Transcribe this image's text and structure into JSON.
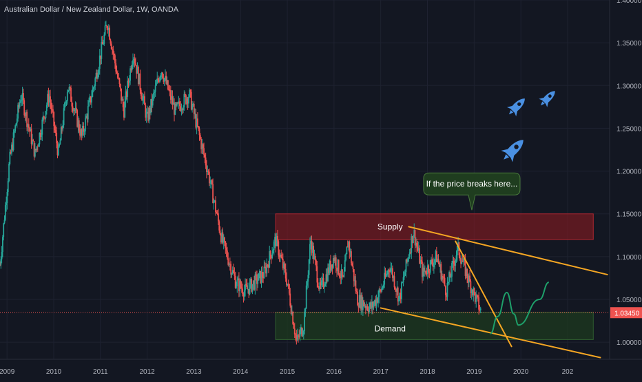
{
  "header": {
    "title": "Australian Dollar / New Zealand Dollar, 1W, OANDA"
  },
  "colors": {
    "background": "#131722",
    "up_candle": "#26a69a",
    "down_candle": "#ef5350",
    "supply_zone": "#8b1a22",
    "demand_zone": "#1e3a1f",
    "trendline": "#f5a623",
    "projection": "#1e9f6a",
    "price_line": "#ef5350",
    "rocket": "#4a90e2",
    "callout_bg": "#1f3d1f",
    "axis_text": "#b2b5be"
  },
  "icons": [
    "rocket-icon",
    "rocket-icon",
    "rocket-icon"
  ],
  "chart_data": {
    "type": "candlestick",
    "symbol": "AUD/NZD",
    "interval": "1W",
    "x_ticks": [
      "2009",
      "2010",
      "2011",
      "2012",
      "2013",
      "2014",
      "2015",
      "2016",
      "2017",
      "2018",
      "2019",
      "2020",
      "202"
    ],
    "y_ticks": [
      "1.00000",
      "1.05000",
      "1.10000",
      "1.15000",
      "1.20000",
      "1.25000",
      "1.30000",
      "1.35000",
      "1.40000"
    ],
    "ylim": [
      0.98,
      1.4
    ],
    "xlim": [
      2008.85,
      2021.9
    ],
    "price_path": [
      [
        2008.85,
        1.09
      ],
      [
        2009.05,
        1.21
      ],
      [
        2009.3,
        1.29
      ],
      [
        2009.6,
        1.22
      ],
      [
        2009.9,
        1.29
      ],
      [
        2010.1,
        1.22
      ],
      [
        2010.3,
        1.3
      ],
      [
        2010.6,
        1.24
      ],
      [
        2010.9,
        1.31
      ],
      [
        2011.15,
        1.375
      ],
      [
        2011.5,
        1.27
      ],
      [
        2011.7,
        1.34
      ],
      [
        2012.0,
        1.26
      ],
      [
        2012.3,
        1.32
      ],
      [
        2012.6,
        1.27
      ],
      [
        2012.9,
        1.29
      ],
      [
        2013.3,
        1.2
      ],
      [
        2013.6,
        1.12
      ],
      [
        2013.9,
        1.07
      ],
      [
        2014.1,
        1.06
      ],
      [
        2014.5,
        1.08
      ],
      [
        2014.75,
        1.12
      ],
      [
        2015.0,
        1.07
      ],
      [
        2015.2,
        1.0
      ],
      [
        2015.35,
        1.02
      ],
      [
        2015.5,
        1.12
      ],
      [
        2015.7,
        1.06
      ],
      [
        2016.0,
        1.1
      ],
      [
        2016.2,
        1.07
      ],
      [
        2016.3,
        1.12
      ],
      [
        2016.5,
        1.05
      ],
      [
        2016.8,
        1.04
      ],
      [
        2017.0,
        1.06
      ],
      [
        2017.2,
        1.09
      ],
      [
        2017.4,
        1.05
      ],
      [
        2017.7,
        1.13
      ],
      [
        2017.9,
        1.08
      ],
      [
        2018.2,
        1.1
      ],
      [
        2018.4,
        1.06
      ],
      [
        2018.65,
        1.11
      ],
      [
        2018.9,
        1.07
      ],
      [
        2019.15,
        1.035
      ]
    ],
    "current_price": 1.0345,
    "current_price_label": "1.03450",
    "zones": [
      {
        "label": "Supply",
        "x0": 2014.75,
        "x1": 2021.55,
        "y0": 1.12,
        "y1": 1.15
      },
      {
        "label": "Demand",
        "x0": 2014.75,
        "x1": 2021.55,
        "y0": 1.003,
        "y1": 1.035
      }
    ],
    "trendlines": [
      {
        "x0": 2017.6,
        "y0": 1.135,
        "x1": 2021.85,
        "y1": 1.079
      },
      {
        "x0": 2017.0,
        "y0": 1.04,
        "x1": 2021.7,
        "y1": 0.982
      },
      {
        "x0": 2018.6,
        "y0": 1.118,
        "x1": 2019.8,
        "y1": 0.995
      }
    ],
    "projection": [
      [
        2019.35,
        1.01
      ],
      [
        2019.5,
        1.03
      ],
      [
        2019.7,
        1.058
      ],
      [
        2019.85,
        1.033
      ],
      [
        2019.95,
        1.02
      ],
      [
        2020.4,
        1.05
      ],
      [
        2020.6,
        1.07
      ]
    ],
    "annotations": [
      {
        "text": "Supply",
        "x": 2017.2,
        "y": 1.135
      },
      {
        "text": "Demand",
        "x": 2017.2,
        "y": 1.016
      },
      {
        "text": "If the price breaks here...",
        "x": 2018.95,
        "y": 1.185
      }
    ]
  }
}
